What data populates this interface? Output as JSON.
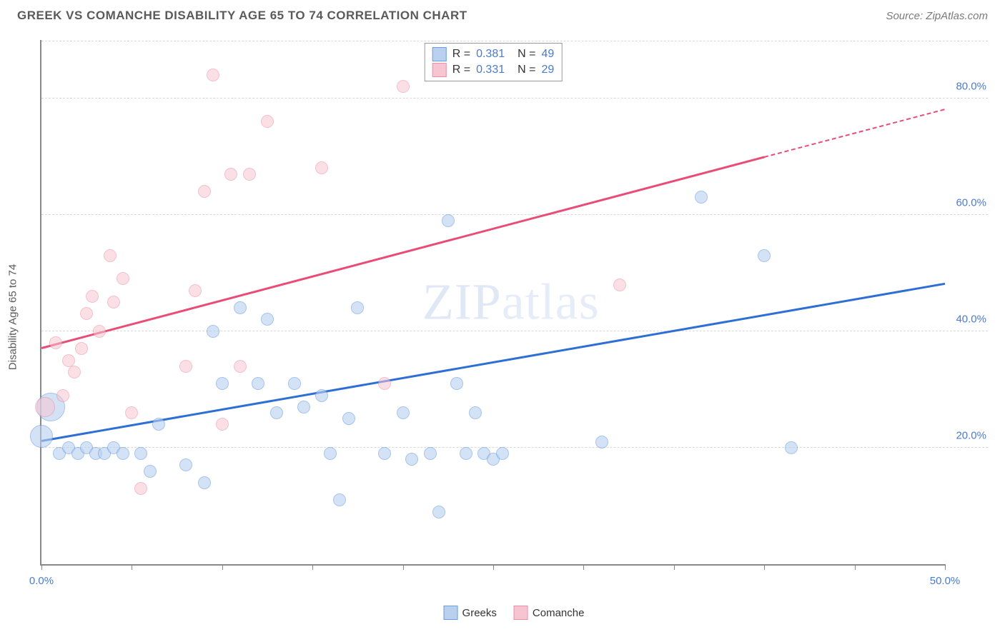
{
  "header": {
    "title": "GREEK VS COMANCHE DISABILITY AGE 65 TO 74 CORRELATION CHART",
    "source": "Source: ZipAtlas.com"
  },
  "chart": {
    "type": "scatter",
    "y_axis_title": "Disability Age 65 to 74",
    "xlim": [
      0,
      50
    ],
    "ylim": [
      0,
      90
    ],
    "x_ticks": [
      0,
      5,
      10,
      15,
      20,
      25,
      30,
      35,
      40,
      45,
      50
    ],
    "x_tick_labels": {
      "0": "0.0%",
      "50": "50.0%"
    },
    "y_grid": [
      20,
      40,
      60,
      80
    ],
    "y_tick_labels": {
      "20": "20.0%",
      "40": "40.0%",
      "60": "60.0%",
      "80": "80.0%"
    },
    "background_color": "#ffffff",
    "grid_color": "#d8d8d8",
    "axis_color": "#888888",
    "tick_label_color": "#4a7bd0",
    "axis_title_color": "#5a5a5a",
    "watermark": "ZIPatlas",
    "point_radius": 9,
    "point_stroke_width": 1.5,
    "series": [
      {
        "name": "Greeks",
        "fill": "#b9d0ef",
        "stroke": "#6a9de0",
        "fill_opacity": 0.6,
        "R": "0.381",
        "N": "49",
        "trend": {
          "x1": 0,
          "y1": 21,
          "x2": 50,
          "y2": 48,
          "color": "#2e6fd6",
          "width": 2.5,
          "dash_after_x": null
        },
        "points": [
          {
            "x": 0.0,
            "y": 22,
            "r": 16
          },
          {
            "x": 0.5,
            "y": 27,
            "r": 20
          },
          {
            "x": 1.0,
            "y": 19
          },
          {
            "x": 1.5,
            "y": 20
          },
          {
            "x": 2.0,
            "y": 19
          },
          {
            "x": 2.5,
            "y": 20
          },
          {
            "x": 3.0,
            "y": 19
          },
          {
            "x": 3.5,
            "y": 19
          },
          {
            "x": 4.0,
            "y": 20
          },
          {
            "x": 4.5,
            "y": 19
          },
          {
            "x": 5.5,
            "y": 19
          },
          {
            "x": 6.0,
            "y": 16
          },
          {
            "x": 6.5,
            "y": 24
          },
          {
            "x": 8.0,
            "y": 17
          },
          {
            "x": 9.0,
            "y": 14
          },
          {
            "x": 9.5,
            "y": 40
          },
          {
            "x": 10.0,
            "y": 31
          },
          {
            "x": 11.0,
            "y": 44
          },
          {
            "x": 12.0,
            "y": 31
          },
          {
            "x": 12.5,
            "y": 42
          },
          {
            "x": 13.0,
            "y": 26
          },
          {
            "x": 14.0,
            "y": 31
          },
          {
            "x": 14.5,
            "y": 27
          },
          {
            "x": 15.5,
            "y": 29
          },
          {
            "x": 16.0,
            "y": 19
          },
          {
            "x": 16.5,
            "y": 11
          },
          {
            "x": 17.0,
            "y": 25
          },
          {
            "x": 17.5,
            "y": 44
          },
          {
            "x": 19.0,
            "y": 19
          },
          {
            "x": 20.0,
            "y": 26
          },
          {
            "x": 20.5,
            "y": 18
          },
          {
            "x": 21.5,
            "y": 19
          },
          {
            "x": 22.0,
            "y": 9
          },
          {
            "x": 22.5,
            "y": 59
          },
          {
            "x": 23.0,
            "y": 31
          },
          {
            "x": 23.5,
            "y": 19
          },
          {
            "x": 24.0,
            "y": 26
          },
          {
            "x": 24.5,
            "y": 19
          },
          {
            "x": 25.0,
            "y": 18
          },
          {
            "x": 25.5,
            "y": 19
          },
          {
            "x": 31.0,
            "y": 21
          },
          {
            "x": 36.5,
            "y": 63
          },
          {
            "x": 40.0,
            "y": 53
          },
          {
            "x": 41.5,
            "y": 20
          }
        ]
      },
      {
        "name": "Comanche",
        "fill": "#f6c5d1",
        "stroke": "#ea8fa8",
        "fill_opacity": 0.55,
        "R": "0.331",
        "N": "29",
        "trend": {
          "x1": 0,
          "y1": 37,
          "x2": 50,
          "y2": 78,
          "color": "#e84d78",
          "width": 2.5,
          "dash_after_x": 40
        },
        "points": [
          {
            "x": 0.2,
            "y": 27,
            "r": 14
          },
          {
            "x": 0.8,
            "y": 38
          },
          {
            "x": 1.2,
            "y": 29
          },
          {
            "x": 1.5,
            "y": 35
          },
          {
            "x": 1.8,
            "y": 33
          },
          {
            "x": 2.2,
            "y": 37
          },
          {
            "x": 2.5,
            "y": 43
          },
          {
            "x": 2.8,
            "y": 46
          },
          {
            "x": 3.2,
            "y": 40
          },
          {
            "x": 3.8,
            "y": 53
          },
          {
            "x": 4.0,
            "y": 45
          },
          {
            "x": 4.5,
            "y": 49
          },
          {
            "x": 5.0,
            "y": 26
          },
          {
            "x": 5.5,
            "y": 13
          },
          {
            "x": 8.0,
            "y": 34
          },
          {
            "x": 8.5,
            "y": 47
          },
          {
            "x": 9.0,
            "y": 64
          },
          {
            "x": 9.5,
            "y": 84
          },
          {
            "x": 10.0,
            "y": 24
          },
          {
            "x": 10.5,
            "y": 67
          },
          {
            "x": 11.0,
            "y": 34
          },
          {
            "x": 11.5,
            "y": 67
          },
          {
            "x": 12.5,
            "y": 76
          },
          {
            "x": 15.5,
            "y": 68
          },
          {
            "x": 19.0,
            "y": 31
          },
          {
            "x": 20.0,
            "y": 82
          },
          {
            "x": 32.0,
            "y": 48
          }
        ]
      }
    ],
    "bottom_legend": [
      {
        "label": "Greeks",
        "fill": "#b9d0ef",
        "stroke": "#6a9de0"
      },
      {
        "label": "Comanche",
        "fill": "#f6c5d1",
        "stroke": "#ea8fa8"
      }
    ]
  }
}
